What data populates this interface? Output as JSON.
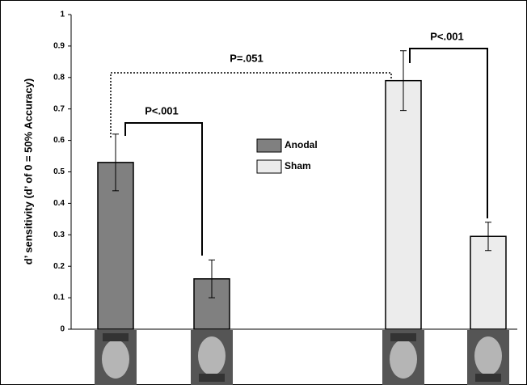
{
  "chart_data": {
    "type": "bar",
    "y_label": "d’ sensitivity (d’ of 0 = 50% Accuracy)",
    "categories": [
      null,
      null,
      null,
      null
    ],
    "series": [
      {
        "name": "Anodal",
        "color": "#808080",
        "values": [
          0.53,
          0.16,
          null,
          null
        ],
        "errors": [
          0.09,
          0.06,
          null,
          null
        ]
      },
      {
        "name": "Sham",
        "color": "#ececec",
        "values": [
          null,
          null,
          0.79,
          0.295
        ],
        "errors": [
          null,
          null,
          0.095,
          0.045
        ]
      }
    ],
    "ylim": [
      0,
      1
    ],
    "yticks": [
      0,
      0.1,
      0.2,
      0.3,
      0.4,
      0.5,
      0.6,
      0.7,
      0.8,
      0.9,
      1
    ],
    "annotations": [
      "P=.051",
      "P<.001",
      "P<.001"
    ]
  }
}
